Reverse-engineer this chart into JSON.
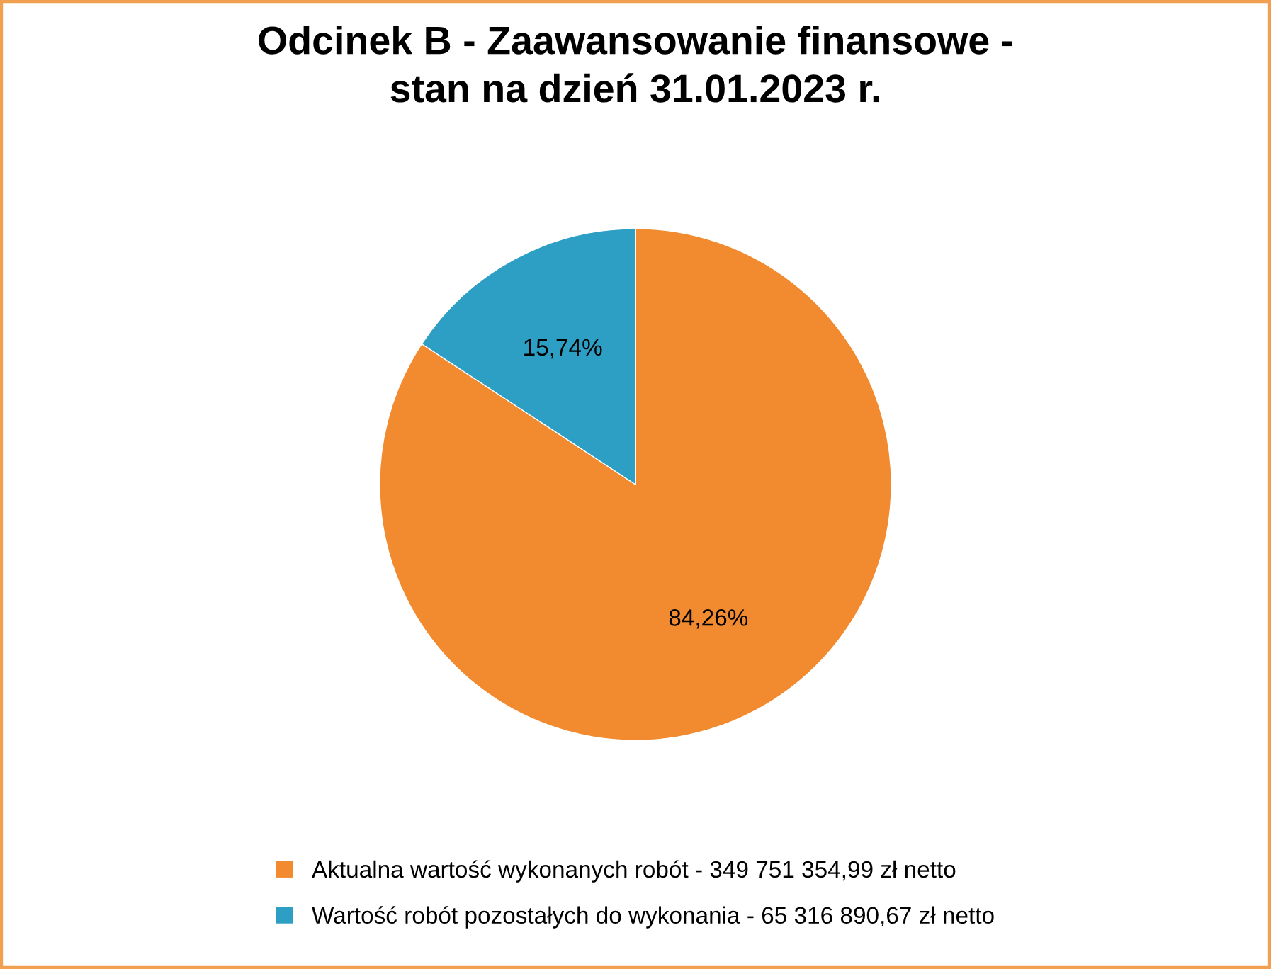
{
  "chart_data": {
    "type": "pie",
    "title": "Odcinek B - Zaawansowanie finansowe -\nstan na dzień 31.01.2023 r.",
    "categories": [
      "Aktualna wartość wykonanych robót - 349 751 354,99 zł netto",
      "Wartość robót pozostałych do wykonania - 65 316 890,67 zł netto"
    ],
    "values": [
      84.26,
      15.74
    ],
    "colors": [
      "#f28a30",
      "#2e9fc4"
    ],
    "value_labels": [
      "84,26%",
      "15,74%"
    ],
    "legend": "bottom"
  }
}
